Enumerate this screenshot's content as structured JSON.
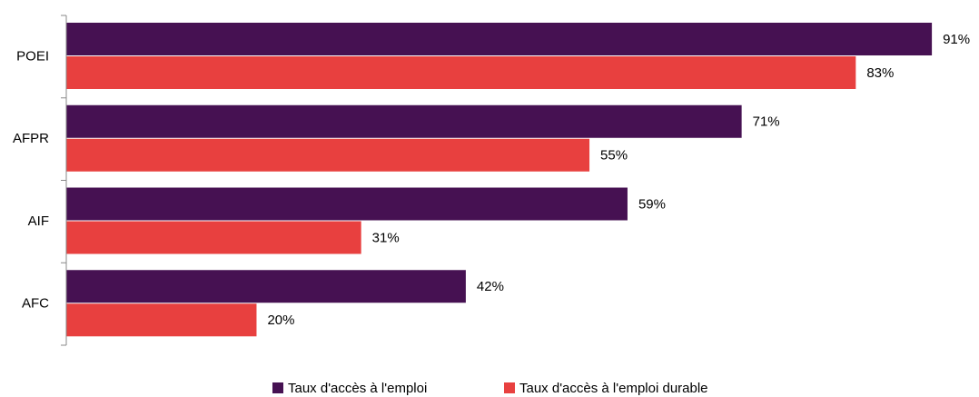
{
  "chart_data": {
    "type": "bar",
    "orientation": "horizontal",
    "categories": [
      "POEI",
      "AFPR",
      "AIF",
      "AFC"
    ],
    "series": [
      {
        "name": "Taux d'accès à l'emploi",
        "color": "#461152",
        "values": [
          91,
          71,
          59,
          42
        ],
        "value_labels": [
          "91%",
          "71%",
          "59%",
          "42%"
        ]
      },
      {
        "name": "Taux d'accès à l'emploi durable",
        "color": "#e8403f",
        "values": [
          83,
          55,
          31,
          20
        ],
        "value_labels": [
          "83%",
          "55%",
          "31%",
          "20%"
        ]
      }
    ],
    "xlim": [
      0,
      95
    ],
    "grid": false,
    "legend": "bottom"
  }
}
